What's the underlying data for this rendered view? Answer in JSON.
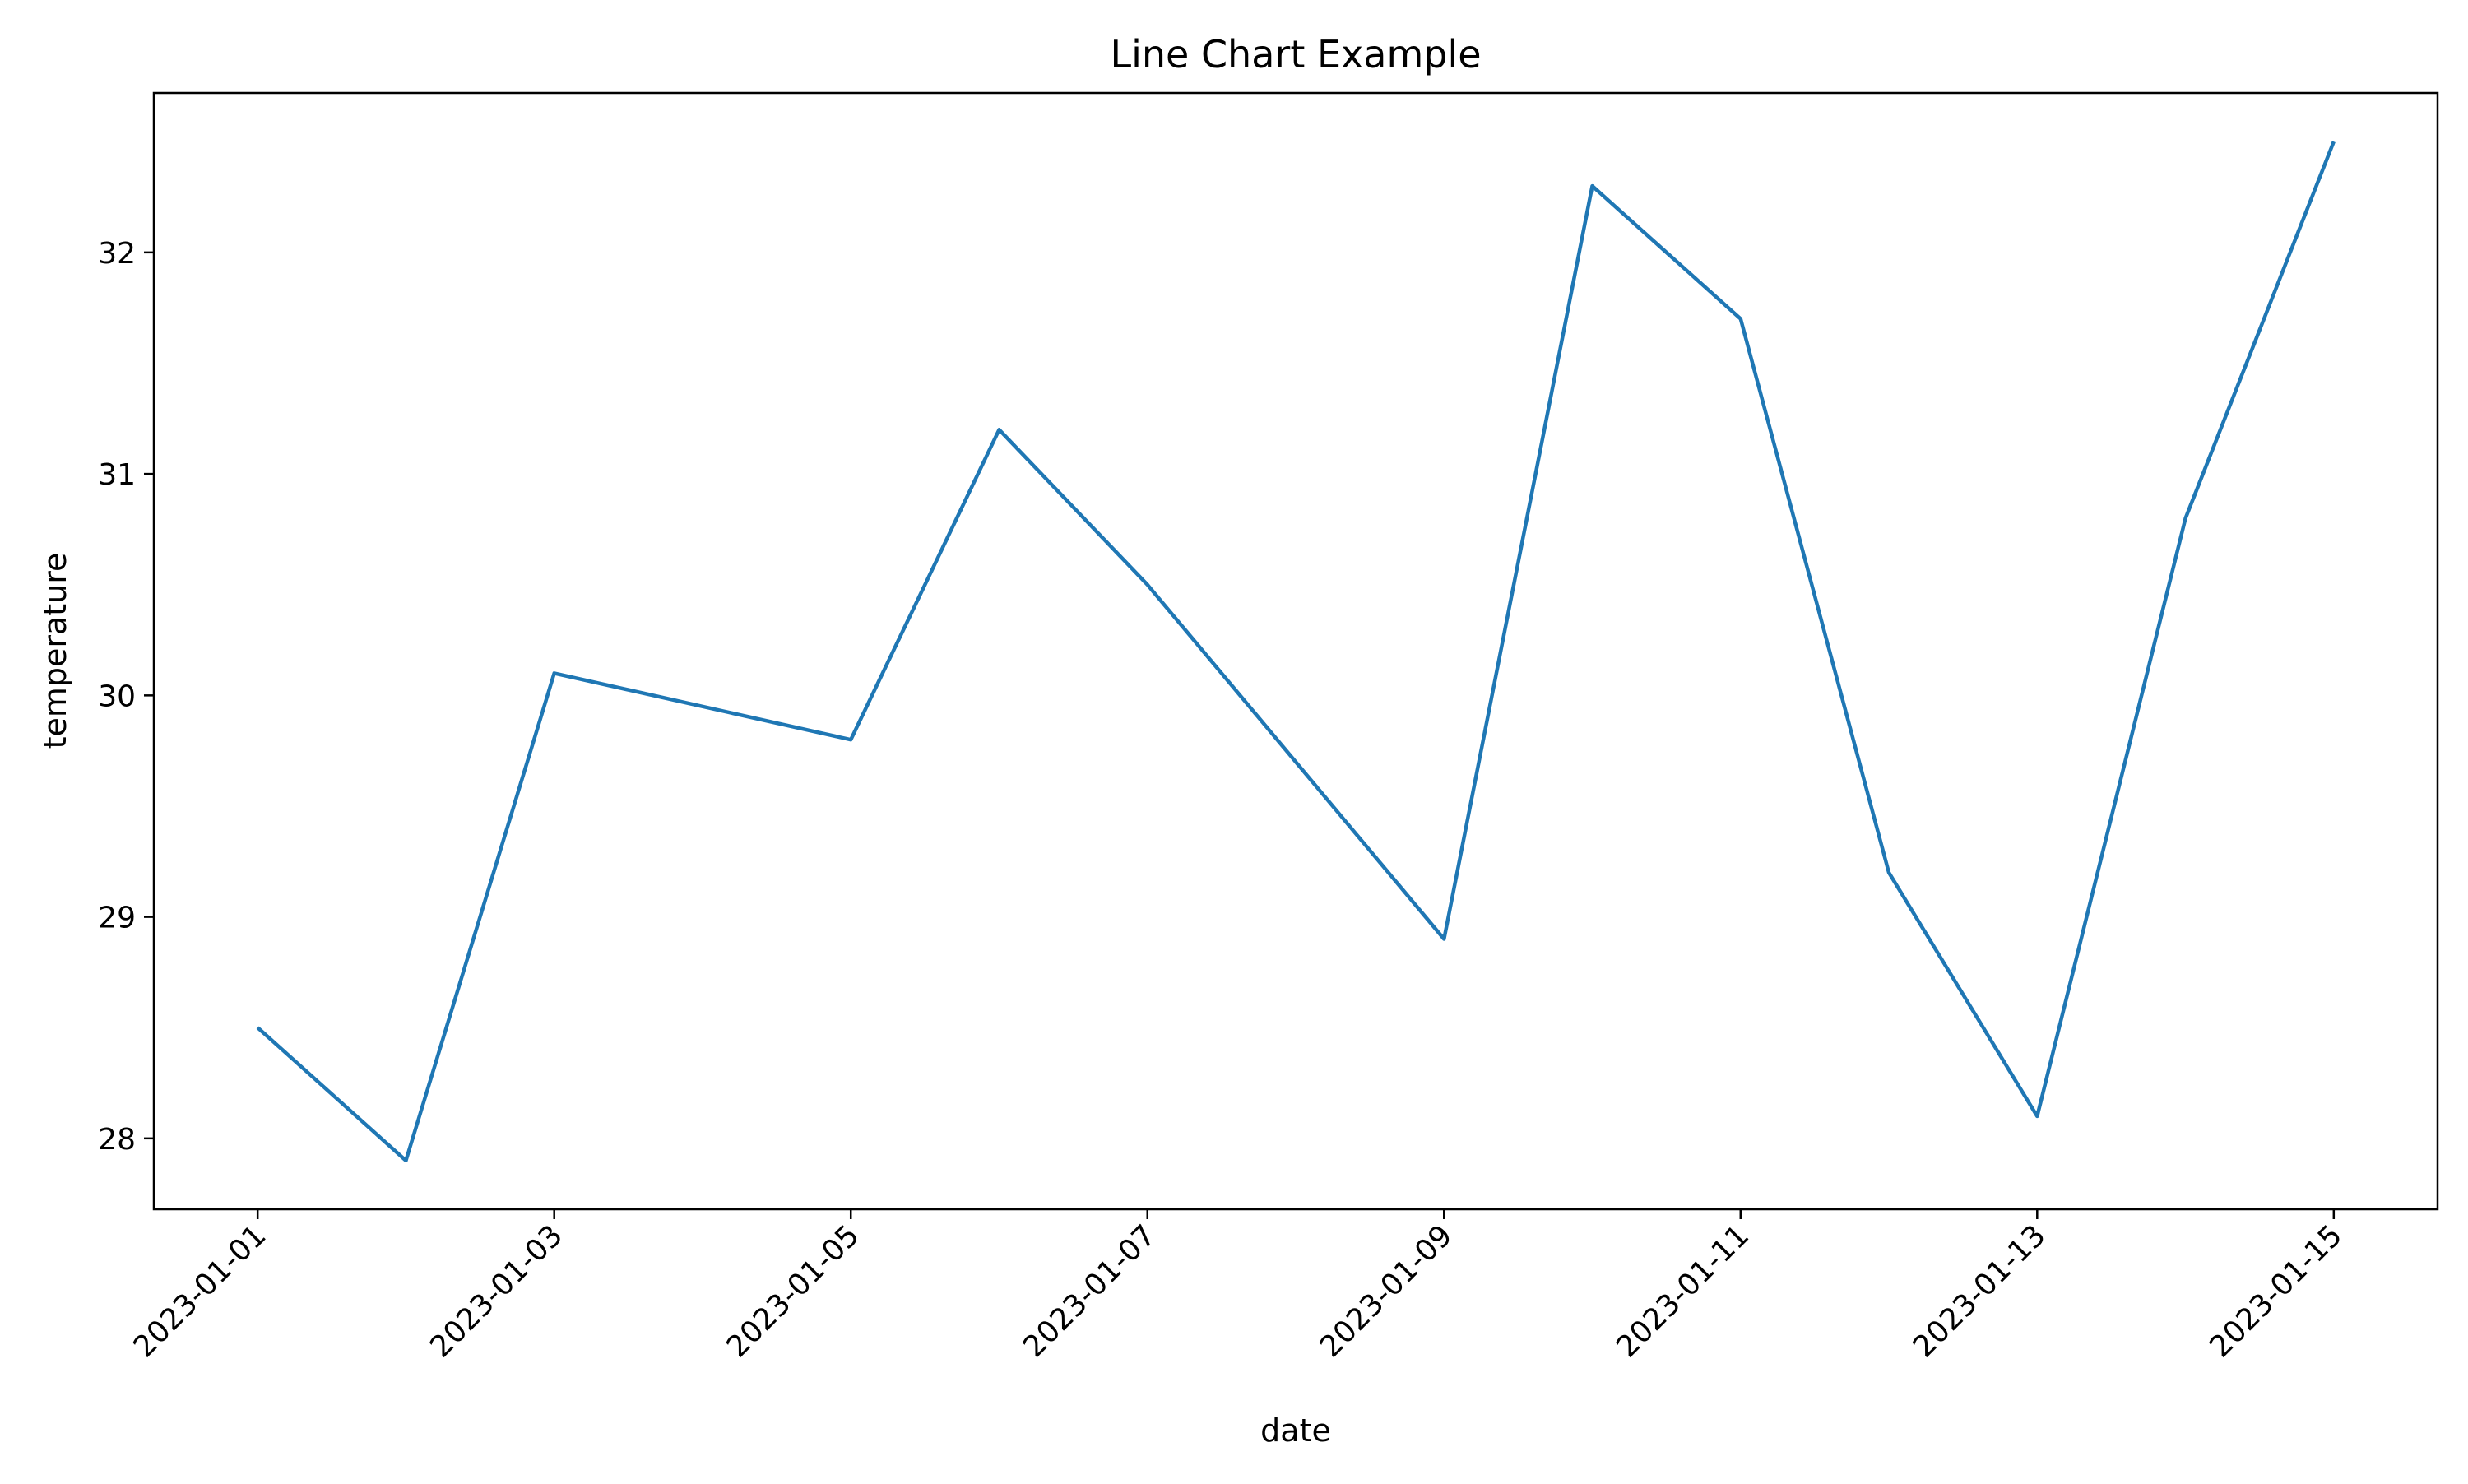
{
  "chart_data": {
    "type": "line",
    "title": "Line Chart Example",
    "xlabel": "date",
    "ylabel": "temperature",
    "x": [
      "2023-01-01",
      "2023-01-02",
      "2023-01-03",
      "2023-01-04",
      "2023-01-05",
      "2023-01-06",
      "2023-01-07",
      "2023-01-08",
      "2023-01-09",
      "2023-01-10",
      "2023-01-11",
      "2023-01-12",
      "2023-01-13",
      "2023-01-14",
      "2023-01-15"
    ],
    "series": [
      {
        "values": [
          28.5,
          27.9,
          30.1,
          null,
          29.8,
          31.2,
          30.5,
          null,
          28.9,
          32.3,
          31.7,
          29.2,
          28.1,
          30.8,
          32.5
        ],
        "color": "#1f77b4"
      }
    ],
    "xticks": [
      "2023-01-01",
      "2023-01-03",
      "2023-01-05",
      "2023-01-07",
      "2023-01-09",
      "2023-01-11",
      "2023-01-13",
      "2023-01-15"
    ],
    "yticks": [
      "28",
      "29",
      "30",
      "31",
      "32"
    ],
    "ylim": [
      27.68,
      32.72
    ],
    "grid": false,
    "legend": false
  }
}
